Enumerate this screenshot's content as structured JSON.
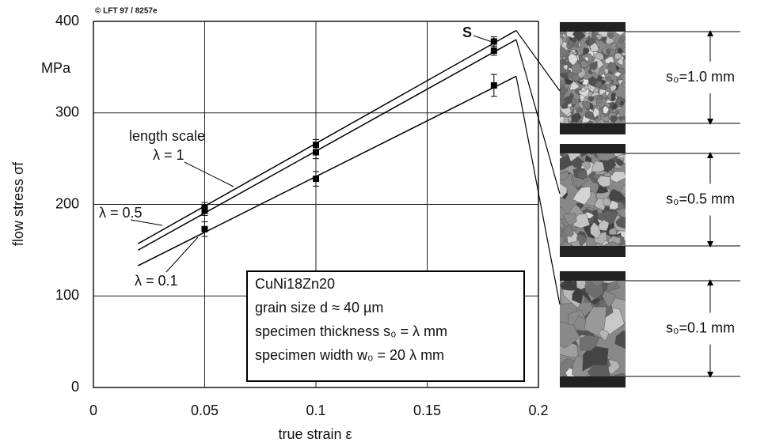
{
  "chart_data": {
    "type": "scatter",
    "copyright": "© LFT 97 / 8257e",
    "y_unit": "MPa",
    "ylabel": "flow stress σf",
    "xlabel": "true strain ε",
    "xlim": [
      0,
      0.2
    ],
    "xticks": [
      0,
      0.05,
      0.1,
      0.15,
      0.2
    ],
    "ylim": [
      0,
      400
    ],
    "yticks": [
      0,
      100,
      200,
      300,
      400
    ],
    "grid": true,
    "x": [
      0.05,
      0.1,
      0.18
    ],
    "series": [
      {
        "name": "λ = 1",
        "color": "#000000",
        "values": [
          197,
          265,
          378
        ],
        "errors": [
          5,
          6,
          5
        ],
        "fit": {
          "x": [
            0.02,
            0.19
          ],
          "y": [
            157,
            390
          ]
        }
      },
      {
        "name": "λ = 0.5",
        "color": "#000000",
        "values": [
          193,
          257,
          368
        ],
        "errors": [
          5,
          7,
          5
        ],
        "fit": {
          "x": [
            0.02,
            0.19
          ],
          "y": [
            150,
            380
          ]
        }
      },
      {
        "name": "λ = 0.1",
        "color": "#000000",
        "values": [
          173,
          228,
          330
        ],
        "errors": [
          8,
          8,
          12
        ],
        "fit": {
          "x": [
            0.02,
            0.19
          ],
          "y": [
            133,
            340
          ]
        }
      }
    ],
    "series_group_label": "length scale",
    "point_label": "S",
    "info_box": [
      "CuNi18Zn20",
      "grain size d ≈ 40 µm",
      "specimen thickness s₀ = λ mm",
      "specimen width w₀ = 20 λ mm"
    ],
    "specimens": [
      "s₀=1.0 mm",
      "s₀=0.5 mm",
      "s₀=0.1 mm"
    ]
  }
}
